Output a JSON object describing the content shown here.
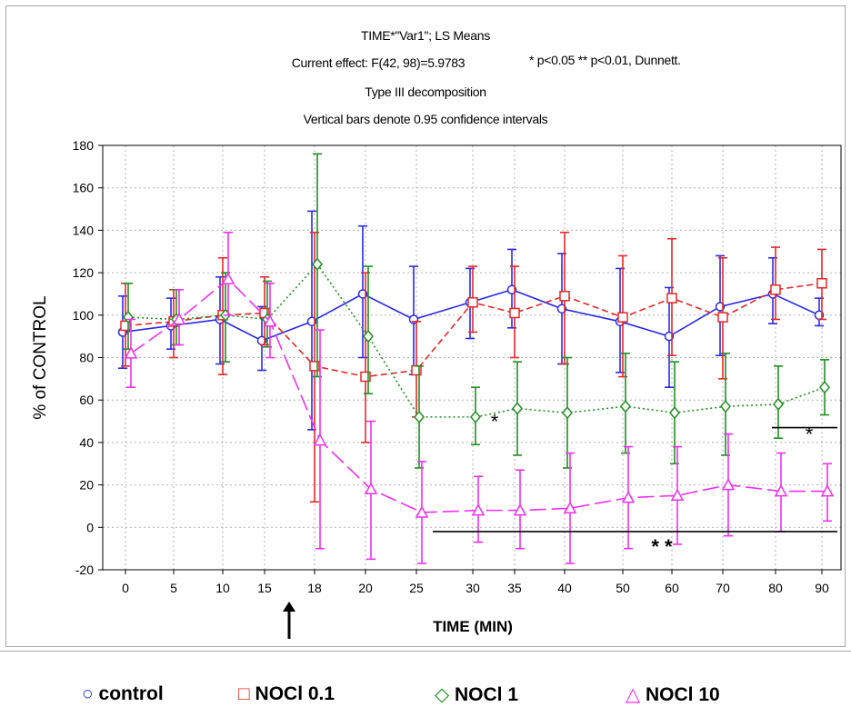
{
  "chart_data": {
    "type": "line",
    "title_lines": [
      "TIME*\"Var1\"; LS Means",
      "Current effect: F(42, 98)=5.9783",
      "Type III decomposition",
      "Vertical bars denote 0.95 confidence intervals"
    ],
    "annotation_note": "* p<0.05 ** p<0.01, Dunnett.",
    "xlabel": "TIME (MIN)",
    "ylabel": "% of CONTROL",
    "x_categories": [
      "0",
      "5",
      "10",
      "15",
      "18",
      "20",
      "25",
      "30",
      "35",
      "40",
      "50",
      "60",
      "70",
      "80",
      "90"
    ],
    "ylim": [
      -20,
      180
    ],
    "y_ticks": [
      "-20",
      "0",
      "20",
      "40",
      "60",
      "80",
      "100",
      "120",
      "140",
      "160",
      "180"
    ],
    "grid": true,
    "legend_position": "bottom",
    "series": [
      {
        "name": "control",
        "color": "#2a2ae6",
        "marker": "circle",
        "line_style": "solid",
        "values": [
          92,
          95,
          98,
          88,
          97,
          110,
          98,
          106,
          112,
          103,
          97,
          90,
          104,
          110,
          100
        ],
        "ci": [
          [
            75,
            109
          ],
          [
            84,
            108
          ],
          [
            77,
            118
          ],
          [
            74,
            104
          ],
          [
            46,
            149
          ],
          [
            80,
            142
          ],
          [
            72,
            123
          ],
          [
            89,
            122
          ],
          [
            94,
            131
          ],
          [
            77,
            129
          ],
          [
            73,
            122
          ],
          [
            66,
            113
          ],
          [
            81,
            128
          ],
          [
            96,
            127
          ],
          [
            95,
            108
          ]
        ]
      },
      {
        "name": "NOCl 0.1",
        "color": "#e62828",
        "marker": "square",
        "line_style": "dashed",
        "values": [
          95,
          97,
          100,
          101,
          76,
          71,
          74,
          106,
          101,
          109,
          99,
          108,
          99,
          112,
          115
        ],
        "ci": [
          [
            76,
            115
          ],
          [
            80,
            112
          ],
          [
            72,
            127
          ],
          [
            86,
            118
          ],
          [
            12,
            139
          ],
          [
            40,
            120
          ],
          [
            52,
            97
          ],
          [
            92,
            123
          ],
          [
            80,
            123
          ],
          [
            77,
            139
          ],
          [
            71,
            128
          ],
          [
            81,
            136
          ],
          [
            70,
            127
          ],
          [
            98,
            132
          ],
          [
            98,
            131
          ]
        ]
      },
      {
        "name": "NOCl 1",
        "color": "#209020",
        "marker": "diamond",
        "line_style": "dotted",
        "values": [
          99,
          98,
          100,
          98,
          124,
          90,
          52,
          52,
          56,
          54,
          57,
          54,
          57,
          58,
          66
        ],
        "ci": [
          [
            84,
            115
          ],
          [
            86,
            112
          ],
          [
            78,
            120
          ],
          [
            85,
            116
          ],
          [
            71,
            176
          ],
          [
            63,
            123
          ],
          [
            28,
            76
          ],
          [
            39,
            66
          ],
          [
            34,
            78
          ],
          [
            28,
            80
          ],
          [
            35,
            82
          ],
          [
            30,
            78
          ],
          [
            34,
            82
          ],
          [
            42,
            76
          ],
          [
            53,
            79
          ]
        ]
      },
      {
        "name": "NOCl 10",
        "color": "#f030f0",
        "marker": "triangle",
        "line_style": "long-dash",
        "values": [
          82,
          98,
          117,
          97,
          41,
          18,
          7,
          8,
          8,
          9,
          14,
          15,
          20,
          17,
          17
        ],
        "ci": [
          [
            66,
            98
          ],
          [
            86,
            112
          ],
          [
            100,
            139
          ],
          [
            80,
            115
          ],
          [
            -10,
            93
          ],
          [
            -15,
            50
          ],
          [
            -17,
            31
          ],
          [
            -7,
            24
          ],
          [
            -10,
            27
          ],
          [
            -17,
            35
          ],
          [
            -10,
            38
          ],
          [
            -8,
            38
          ],
          [
            -4,
            44
          ],
          [
            -2,
            35
          ],
          [
            3,
            30
          ]
        ]
      }
    ],
    "annotations": [
      {
        "text": "*",
        "x": "30",
        "y": 50
      },
      {
        "text": "*",
        "x": "80-90",
        "y": 44
      },
      {
        "text": "* *",
        "x": "50-60",
        "y": -8
      }
    ],
    "significance_lines": [
      {
        "x_from": "25",
        "x_to": "90",
        "y": -2
      },
      {
        "x_from": "80",
        "x_to": "90",
        "y": 47
      }
    ],
    "arrow_marker": {
      "x": "15",
      "symbol": "↑"
    }
  },
  "legend_items": [
    {
      "symbol": "○",
      "label": "control",
      "color": "#2a2ae6"
    },
    {
      "symbol": "□",
      "label": "NOCl 0.1",
      "color": "#e62828"
    },
    {
      "symbol": "◇",
      "label": "NOCl 1",
      "color": "#209020"
    },
    {
      "symbol": "△",
      "label": "NOCl 10",
      "color": "#f030f0"
    }
  ]
}
